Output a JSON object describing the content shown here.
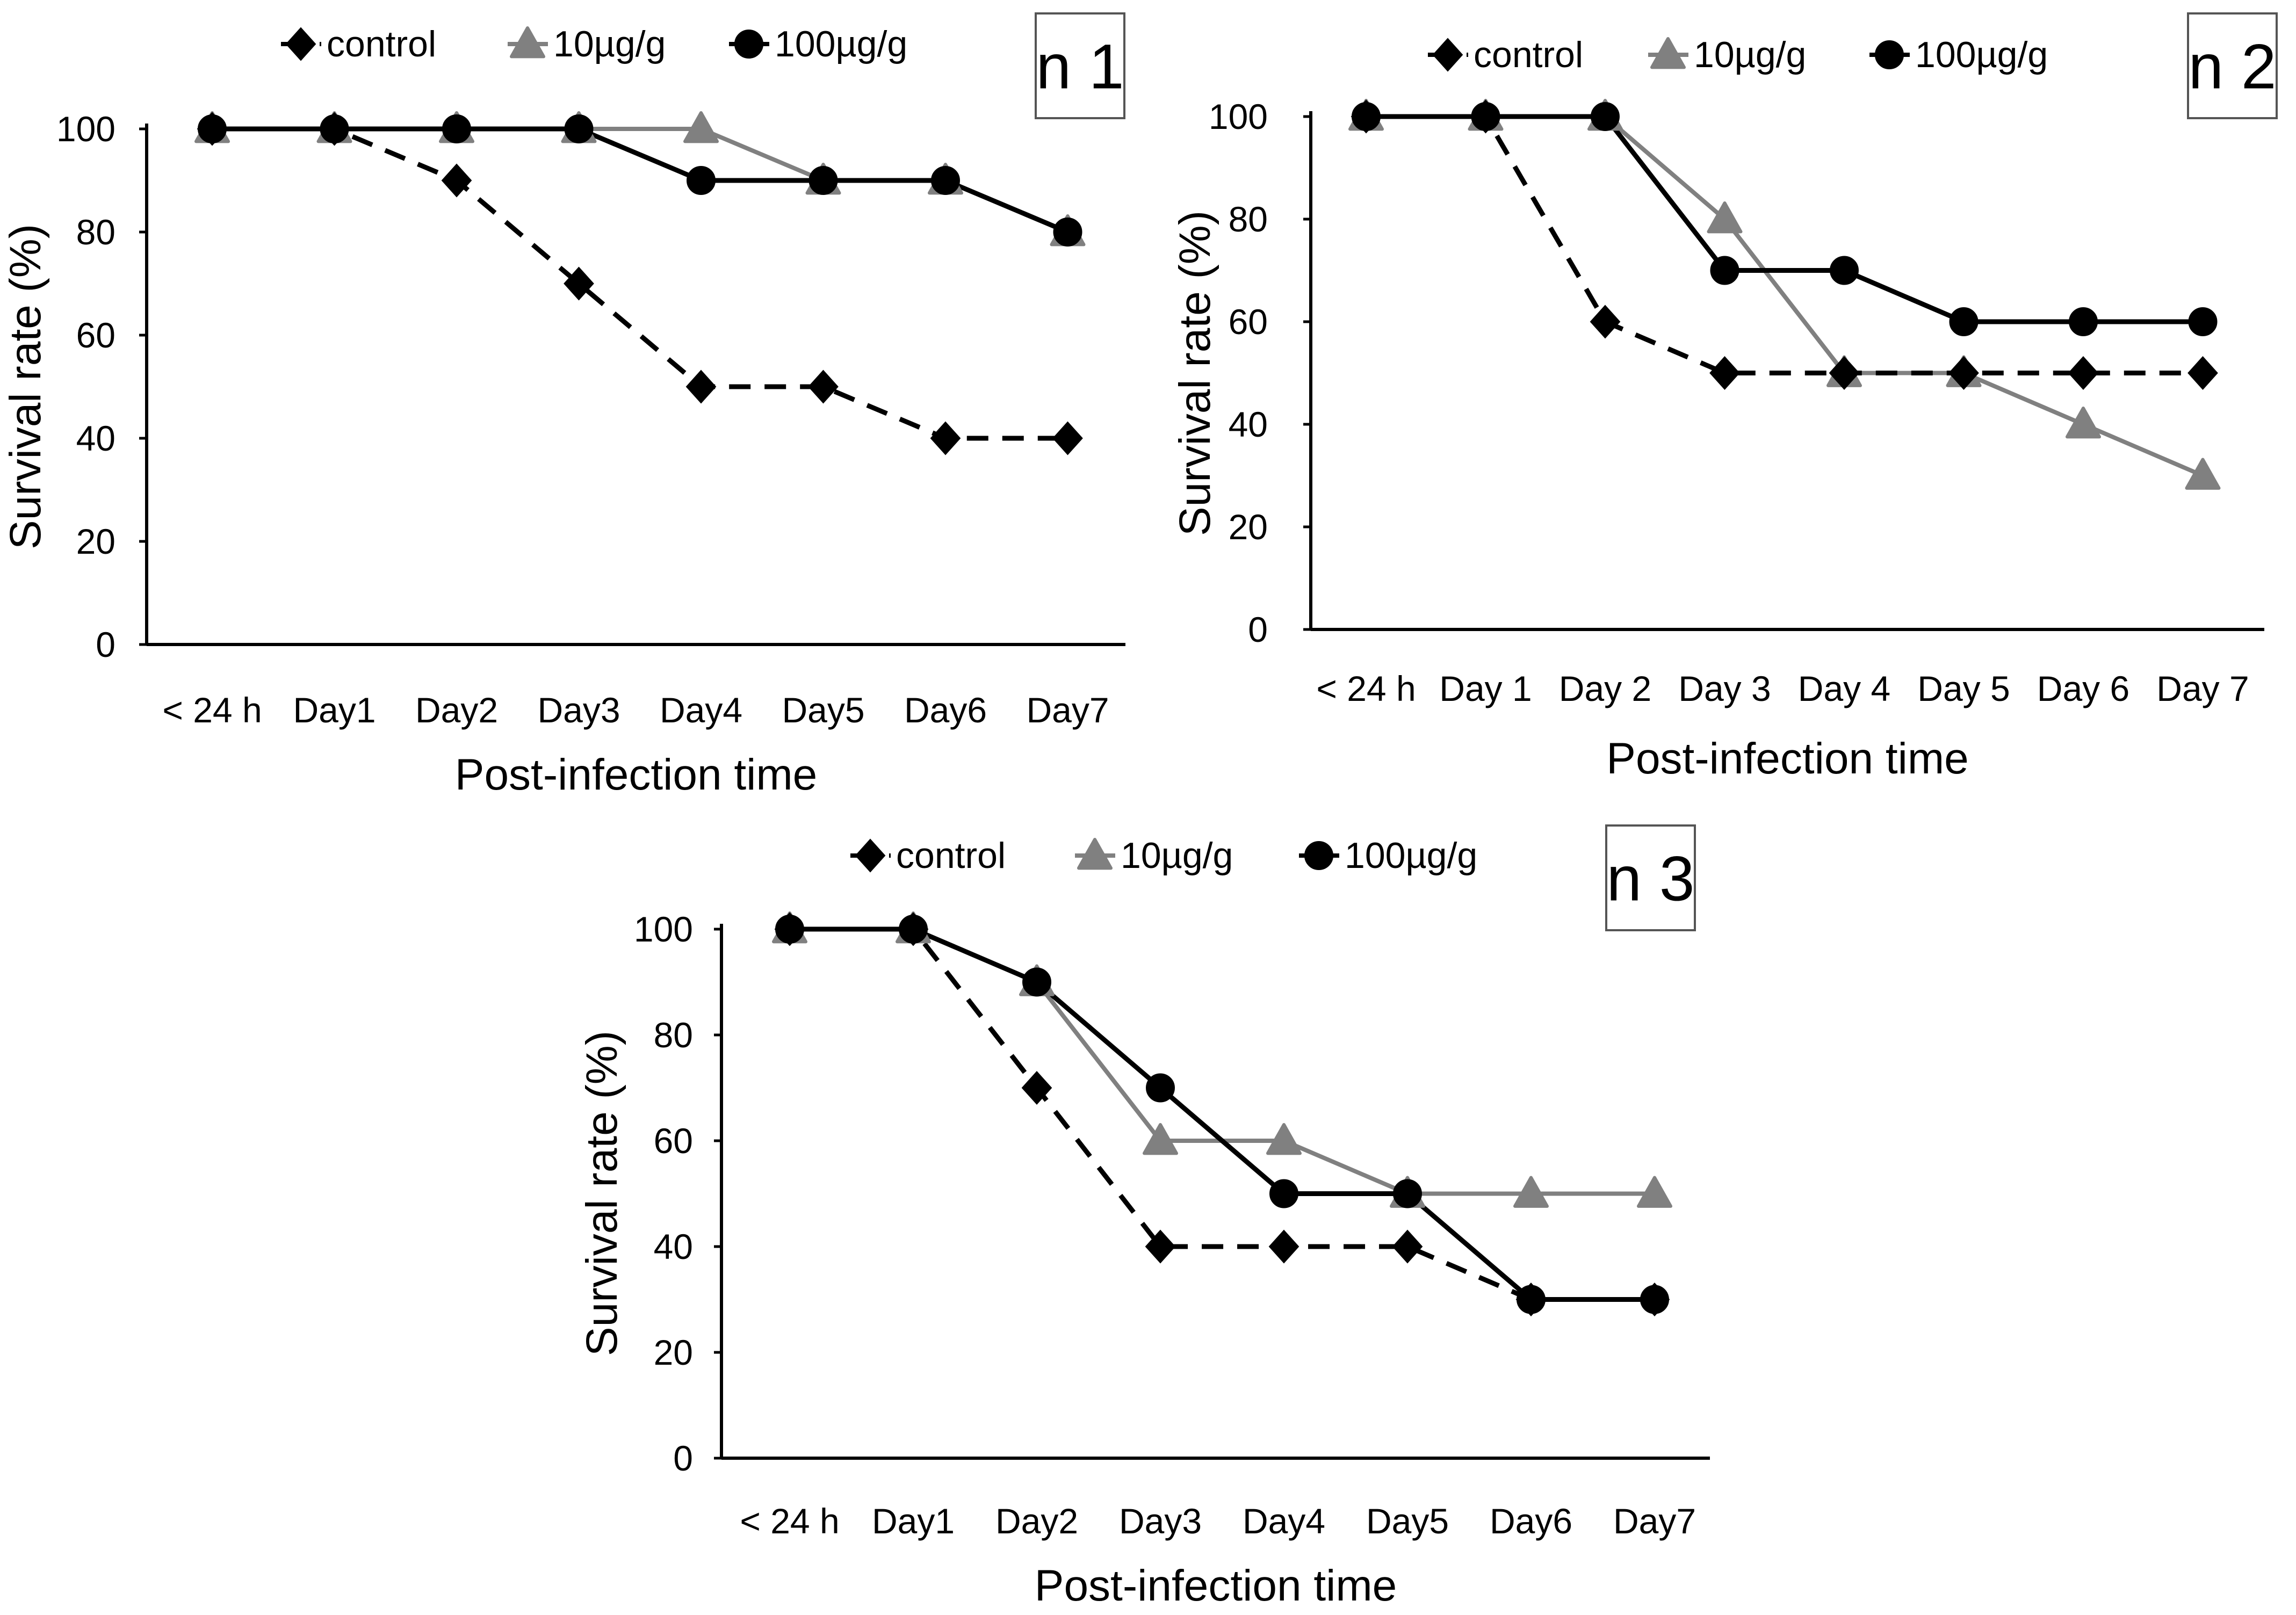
{
  "figure": {
    "description_colors": {
      "control": "#000000",
      "10ug": "#808080",
      "100ug": "#000000"
    }
  },
  "chart_data": [
    {
      "type": "line",
      "panel_label": "n 1",
      "xlabel": "Post-infection time",
      "ylabel": "Survival rate (%)",
      "ylim": [
        0,
        100
      ],
      "yticks": [
        0,
        20,
        40,
        60,
        80,
        100
      ],
      "categories": [
        "< 24 h",
        "Day1",
        "Day2",
        "Day3",
        "Day4",
        "Day5",
        "Day6",
        "Day7"
      ],
      "legend": [
        "control",
        "10µg/g",
        "100µg/g"
      ],
      "series": [
        {
          "name": "control",
          "marker": "diamond",
          "style": "dashed",
          "color": "#000000",
          "values": [
            100,
            100,
            90,
            70,
            50,
            50,
            40,
            40
          ]
        },
        {
          "name": "10µg/g",
          "marker": "triangle",
          "style": "solid",
          "color": "#808080",
          "values": [
            100,
            100,
            100,
            100,
            100,
            90,
            90,
            80
          ]
        },
        {
          "name": "100µg/g",
          "marker": "circle",
          "style": "solid",
          "color": "#000000",
          "values": [
            100,
            100,
            100,
            100,
            90,
            90,
            90,
            80
          ]
        }
      ]
    },
    {
      "type": "line",
      "panel_label": "n 2",
      "xlabel": "Post-infection time",
      "ylabel": "Survival rate (%)",
      "ylim": [
        0,
        100
      ],
      "yticks": [
        0,
        20,
        40,
        60,
        80,
        100
      ],
      "categories": [
        "< 24 h",
        "Day 1",
        "Day 2",
        "Day 3",
        "Day 4",
        "Day 5",
        "Day 6",
        "Day 7"
      ],
      "legend": [
        "control",
        "10µg/g",
        "100µg/g"
      ],
      "series": [
        {
          "name": "control",
          "marker": "diamond",
          "style": "dashed",
          "color": "#000000",
          "values": [
            100,
            100,
            60,
            50,
            50,
            50,
            50,
            50
          ]
        },
        {
          "name": "10µg/g",
          "marker": "triangle",
          "style": "solid",
          "color": "#808080",
          "values": [
            100,
            100,
            100,
            80,
            50,
            50,
            40,
            30
          ]
        },
        {
          "name": "100µg/g",
          "marker": "circle",
          "style": "solid",
          "color": "#000000",
          "values": [
            100,
            100,
            100,
            70,
            70,
            60,
            60,
            60
          ]
        }
      ]
    },
    {
      "type": "line",
      "panel_label": "n 3",
      "xlabel": "Post-infection time",
      "ylabel": "Survival rate (%)",
      "ylim": [
        0,
        100
      ],
      "yticks": [
        0,
        20,
        40,
        60,
        80,
        100
      ],
      "categories": [
        "< 24 h",
        "Day1",
        "Day2",
        "Day3",
        "Day4",
        "Day5",
        "Day6",
        "Day7"
      ],
      "legend": [
        "control",
        "10µg/g",
        "100µg/g"
      ],
      "series": [
        {
          "name": "control",
          "marker": "diamond",
          "style": "dashed",
          "color": "#000000",
          "values": [
            100,
            100,
            70,
            40,
            40,
            40,
            30,
            30
          ]
        },
        {
          "name": "10µg/g",
          "marker": "triangle",
          "style": "solid",
          "color": "#808080",
          "values": [
            100,
            100,
            90,
            60,
            60,
            50,
            50,
            50
          ]
        },
        {
          "name": "100µg/g",
          "marker": "circle",
          "style": "solid",
          "color": "#000000",
          "values": [
            100,
            100,
            90,
            70,
            50,
            50,
            30,
            30
          ]
        }
      ]
    }
  ]
}
